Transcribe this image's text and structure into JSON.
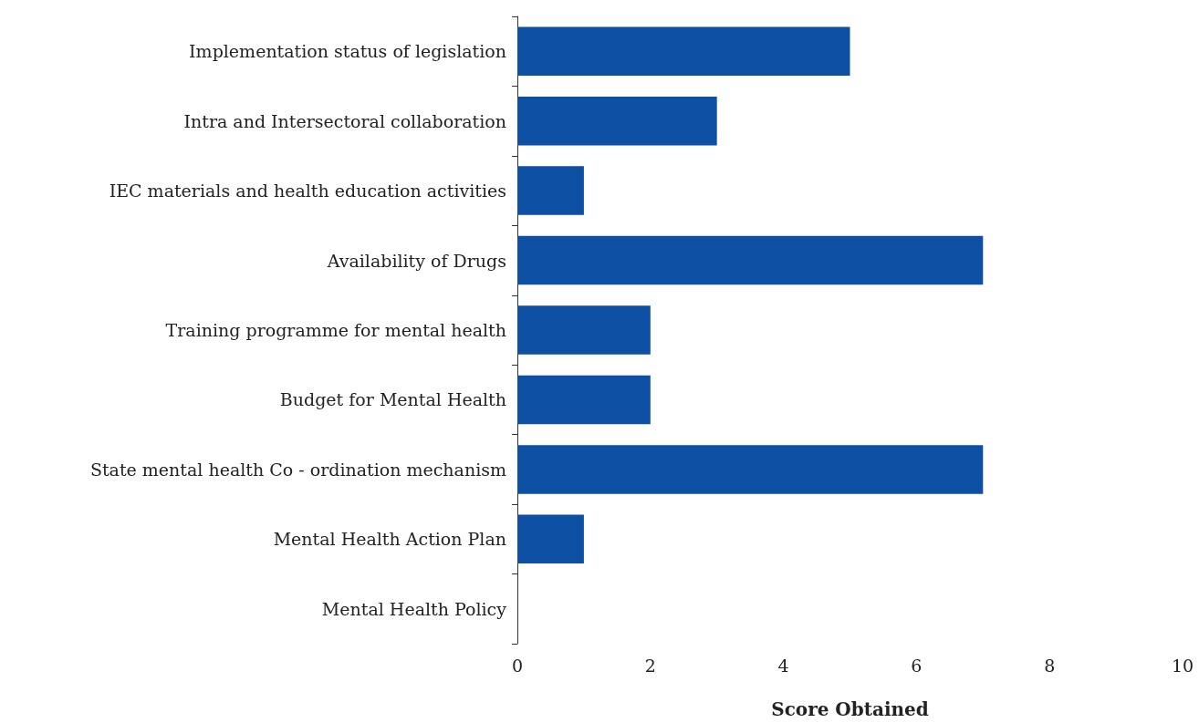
{
  "chart_data": {
    "type": "bar",
    "orientation": "horizontal",
    "xlabel": "Score Obtained",
    "categories": [
      "Implementation status of legislation",
      "Intra and Intersectoral collaboration",
      "IEC materials and health education activities",
      "Availability of Drugs",
      "Training programme for mental health",
      "Budget for Mental Health",
      "State mental health Co - ordination mechanism",
      "Mental Health Action Plan",
      "Mental Health Policy"
    ],
    "values": [
      5,
      3,
      1,
      7,
      2,
      2,
      7,
      1,
      0
    ],
    "color": "#0d4fa3",
    "xlim": [
      0,
      10
    ],
    "xticks": [
      0,
      2,
      4,
      6,
      8,
      10
    ],
    "grid": false
  }
}
